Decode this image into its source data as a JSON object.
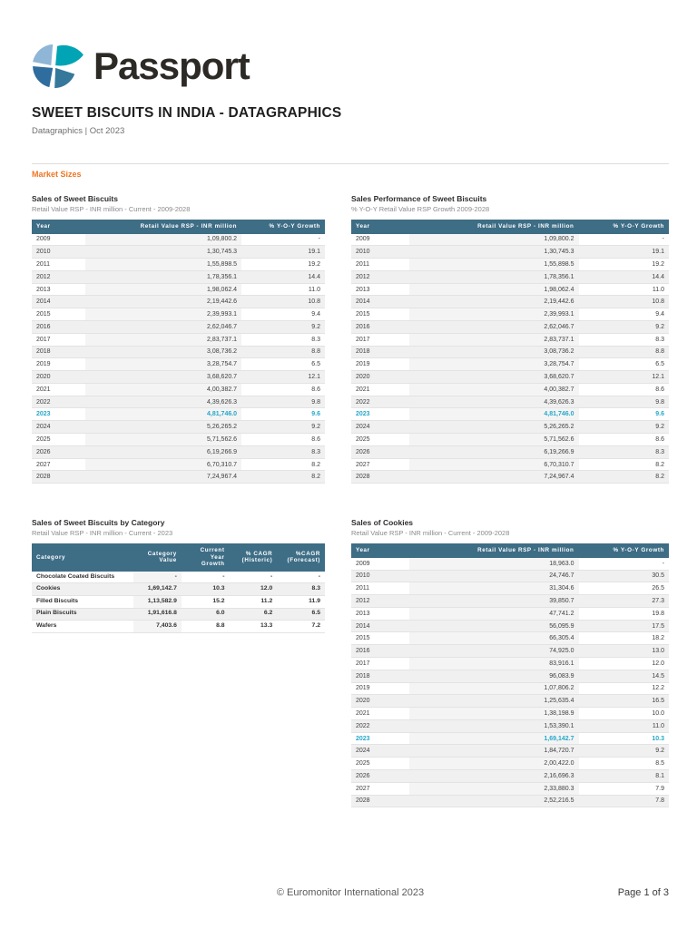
{
  "page": {
    "brand": "Passport",
    "title": "SWEET BISCUITS IN INDIA - DATAGRAPHICS",
    "subtitle": "Datagraphics | Oct 2023",
    "section": "Market Sizes",
    "footer_center": "© Euromonitor International 2023",
    "footer_right": "Page 1 of 3"
  },
  "colors": {
    "accent_orange": "#ee7623",
    "table_header_bg": "#3e6d86",
    "highlight_cyan": "#25a8cb"
  },
  "tables": {
    "sweet_biscuits": {
      "title": "Sales of Sweet Biscuits",
      "subtitle": "Retail Value RSP - INR million - Current - 2009-2028",
      "columns": [
        "Year",
        "Retail Value RSP - INR million",
        "% Y-O-Y Growth"
      ],
      "highlight_row": "2023",
      "rows": [
        [
          "2009",
          "1,09,800.2",
          "-"
        ],
        [
          "2010",
          "1,30,745.3",
          "19.1"
        ],
        [
          "2011",
          "1,55,898.5",
          "19.2"
        ],
        [
          "2012",
          "1,78,356.1",
          "14.4"
        ],
        [
          "2013",
          "1,98,062.4",
          "11.0"
        ],
        [
          "2014",
          "2,19,442.6",
          "10.8"
        ],
        [
          "2015",
          "2,39,993.1",
          "9.4"
        ],
        [
          "2016",
          "2,62,046.7",
          "9.2"
        ],
        [
          "2017",
          "2,83,737.1",
          "8.3"
        ],
        [
          "2018",
          "3,08,736.2",
          "8.8"
        ],
        [
          "2019",
          "3,28,754.7",
          "6.5"
        ],
        [
          "2020",
          "3,68,620.7",
          "12.1"
        ],
        [
          "2021",
          "4,00,382.7",
          "8.6"
        ],
        [
          "2022",
          "4,39,626.3",
          "9.8"
        ],
        [
          "2023",
          "4,81,746.0",
          "9.6"
        ],
        [
          "2024",
          "5,26,265.2",
          "9.2"
        ],
        [
          "2025",
          "5,71,562.6",
          "8.6"
        ],
        [
          "2026",
          "6,19,266.9",
          "8.3"
        ],
        [
          "2027",
          "6,70,310.7",
          "8.2"
        ],
        [
          "2028",
          "7,24,967.4",
          "8.2"
        ]
      ]
    },
    "sweet_biscuits_performance": {
      "title": "Sales Performance of Sweet Biscuits",
      "subtitle": "% Y-O-Y Retail Value RSP Growth 2009-2028",
      "columns": [
        "Year",
        "Retail Value RSP - INR million",
        "% Y-O-Y Growth"
      ],
      "highlight_row": "2023",
      "rows": [
        [
          "2009",
          "1,09,800.2",
          "-"
        ],
        [
          "2010",
          "1,30,745.3",
          "19.1"
        ],
        [
          "2011",
          "1,55,898.5",
          "19.2"
        ],
        [
          "2012",
          "1,78,356.1",
          "14.4"
        ],
        [
          "2013",
          "1,98,062.4",
          "11.0"
        ],
        [
          "2014",
          "2,19,442.6",
          "10.8"
        ],
        [
          "2015",
          "2,39,993.1",
          "9.4"
        ],
        [
          "2016",
          "2,62,046.7",
          "9.2"
        ],
        [
          "2017",
          "2,83,737.1",
          "8.3"
        ],
        [
          "2018",
          "3,08,736.2",
          "8.8"
        ],
        [
          "2019",
          "3,28,754.7",
          "6.5"
        ],
        [
          "2020",
          "3,68,620.7",
          "12.1"
        ],
        [
          "2021",
          "4,00,382.7",
          "8.6"
        ],
        [
          "2022",
          "4,39,626.3",
          "9.8"
        ],
        [
          "2023",
          "4,81,746.0",
          "9.6"
        ],
        [
          "2024",
          "5,26,265.2",
          "9.2"
        ],
        [
          "2025",
          "5,71,562.6",
          "8.6"
        ],
        [
          "2026",
          "6,19,266.9",
          "8.3"
        ],
        [
          "2027",
          "6,70,310.7",
          "8.2"
        ],
        [
          "2028",
          "7,24,967.4",
          "8.2"
        ]
      ]
    },
    "by_category": {
      "title": "Sales of Sweet Biscuits by Category",
      "subtitle": "Retail Value RSP - INR million - Current - 2023",
      "columns": [
        "Category",
        "Category Value",
        "Current Year Growth",
        "% CAGR (Historic)",
        "%CAGR (Forecast)"
      ],
      "rows": [
        [
          "Chocolate Coated Biscuits",
          "-",
          "-",
          "-",
          "-"
        ],
        [
          "Cookies",
          "1,69,142.7",
          "10.3",
          "12.0",
          "8.3"
        ],
        [
          "Filled Biscuits",
          "1,13,582.9",
          "15.2",
          "11.2",
          "11.9"
        ],
        [
          "Plain Biscuits",
          "1,91,616.8",
          "6.0",
          "6.2",
          "6.5"
        ],
        [
          "Wafers",
          "7,403.6",
          "8.8",
          "13.3",
          "7.2"
        ]
      ]
    },
    "cookies": {
      "title": "Sales of Cookies",
      "subtitle": "Retail Value RSP - INR million - Current - 2009-2028",
      "columns": [
        "Year",
        "Retail Value RSP - INR million",
        "% Y-O-Y Growth"
      ],
      "highlight_row": "2023",
      "rows": [
        [
          "2009",
          "18,963.0",
          "-"
        ],
        [
          "2010",
          "24,746.7",
          "30.5"
        ],
        [
          "2011",
          "31,304.6",
          "26.5"
        ],
        [
          "2012",
          "39,850.7",
          "27.3"
        ],
        [
          "2013",
          "47,741.2",
          "19.8"
        ],
        [
          "2014",
          "56,095.9",
          "17.5"
        ],
        [
          "2015",
          "66,305.4",
          "18.2"
        ],
        [
          "2016",
          "74,925.0",
          "13.0"
        ],
        [
          "2017",
          "83,916.1",
          "12.0"
        ],
        [
          "2018",
          "96,083.9",
          "14.5"
        ],
        [
          "2019",
          "1,07,806.2",
          "12.2"
        ],
        [
          "2020",
          "1,25,635.4",
          "16.5"
        ],
        [
          "2021",
          "1,38,198.9",
          "10.0"
        ],
        [
          "2022",
          "1,53,390.1",
          "11.0"
        ],
        [
          "2023",
          "1,69,142.7",
          "10.3"
        ],
        [
          "2024",
          "1,84,720.7",
          "9.2"
        ],
        [
          "2025",
          "2,00,422.0",
          "8.5"
        ],
        [
          "2026",
          "2,16,696.3",
          "8.1"
        ],
        [
          "2027",
          "2,33,880.3",
          "7.9"
        ],
        [
          "2028",
          "2,52,216.5",
          "7.8"
        ]
      ]
    }
  }
}
